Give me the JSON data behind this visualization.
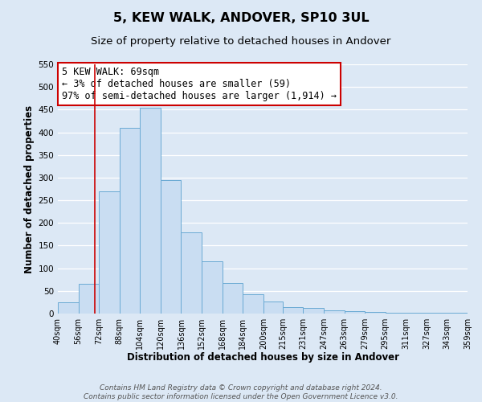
{
  "title": "5, KEW WALK, ANDOVER, SP10 3UL",
  "subtitle": "Size of property relative to detached houses in Andover",
  "xlabel": "Distribution of detached houses by size in Andover",
  "ylabel": "Number of detached properties",
  "footer_line1": "Contains HM Land Registry data © Crown copyright and database right 2024.",
  "footer_line2": "Contains public sector information licensed under the Open Government Licence v3.0.",
  "annotation_line1": "5 KEW WALK: 69sqm",
  "annotation_line2": "← 3% of detached houses are smaller (59)",
  "annotation_line3": "97% of semi-detached houses are larger (1,914) →",
  "bar_edges": [
    40,
    56,
    72,
    88,
    104,
    120,
    136,
    152,
    168,
    184,
    200,
    215,
    231,
    247,
    263,
    279,
    295,
    311,
    327,
    343,
    359
  ],
  "bar_heights": [
    25,
    65,
    270,
    410,
    455,
    295,
    180,
    115,
    67,
    43,
    27,
    15,
    12,
    7,
    5,
    4,
    2,
    2,
    1,
    2
  ],
  "tick_labels": [
    "40sqm",
    "56sqm",
    "72sqm",
    "88sqm",
    "104sqm",
    "120sqm",
    "136sqm",
    "152sqm",
    "168sqm",
    "184sqm",
    "200sqm",
    "215sqm",
    "231sqm",
    "247sqm",
    "263sqm",
    "279sqm",
    "295sqm",
    "311sqm",
    "327sqm",
    "343sqm",
    "359sqm"
  ],
  "bar_color": "#c9ddf2",
  "bar_edge_color": "#6aaad4",
  "bar_linewidth": 0.7,
  "vline_x": 69,
  "vline_color": "#cc0000",
  "ylim": [
    0,
    550
  ],
  "xlim": [
    40,
    359
  ],
  "annotation_box_color": "#ffffff",
  "annotation_box_edge": "#cc0000",
  "background_color": "#dce8f5",
  "plot_bg_color": "#dce8f5",
  "grid_color": "#ffffff",
  "yticks": [
    0,
    50,
    100,
    150,
    200,
    250,
    300,
    350,
    400,
    450,
    500,
    550
  ],
  "title_fontsize": 11.5,
  "subtitle_fontsize": 9.5,
  "annotation_fontsize": 8.5,
  "tick_fontsize": 7,
  "axis_label_fontsize": 8.5,
  "footer_fontsize": 6.5
}
